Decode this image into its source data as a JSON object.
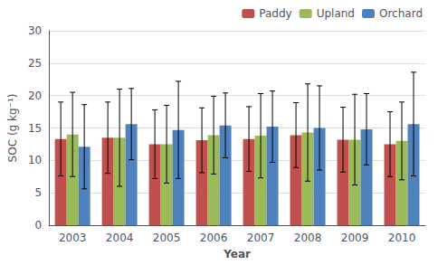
{
  "chart_data": {
    "type": "bar",
    "categories": [
      "2003",
      "2004",
      "2005",
      "2006",
      "2007",
      "2008",
      "2009",
      "2010"
    ],
    "series": [
      {
        "name": "Paddy",
        "color": "#c0504d",
        "values": [
          13.3,
          13.5,
          12.5,
          13.1,
          13.3,
          13.9,
          13.2,
          12.5
        ],
        "errors": [
          5.7,
          5.5,
          5.3,
          5.0,
          5.0,
          5.0,
          5.0,
          5.0
        ]
      },
      {
        "name": "Upland",
        "color": "#9bbb59",
        "values": [
          14.0,
          13.5,
          12.5,
          13.9,
          13.8,
          14.3,
          13.2,
          13.0
        ],
        "errors": [
          6.5,
          7.5,
          6.0,
          6.0,
          6.5,
          7.5,
          7.0,
          6.0
        ]
      },
      {
        "name": "Orchard",
        "color": "#4f81bd",
        "values": [
          12.1,
          15.6,
          14.7,
          15.4,
          15.2,
          15.0,
          14.8,
          15.6
        ],
        "errors": [
          6.5,
          5.5,
          7.5,
          5.0,
          5.5,
          6.5,
          5.5,
          8.0
        ]
      }
    ],
    "xlabel": "Year",
    "ylabel": "SOC (g kg⁻¹)",
    "ylim": [
      0,
      30
    ],
    "yticks": [
      0,
      5,
      10,
      15,
      20,
      25,
      30
    ],
    "grid": true,
    "legend": "upper right"
  }
}
